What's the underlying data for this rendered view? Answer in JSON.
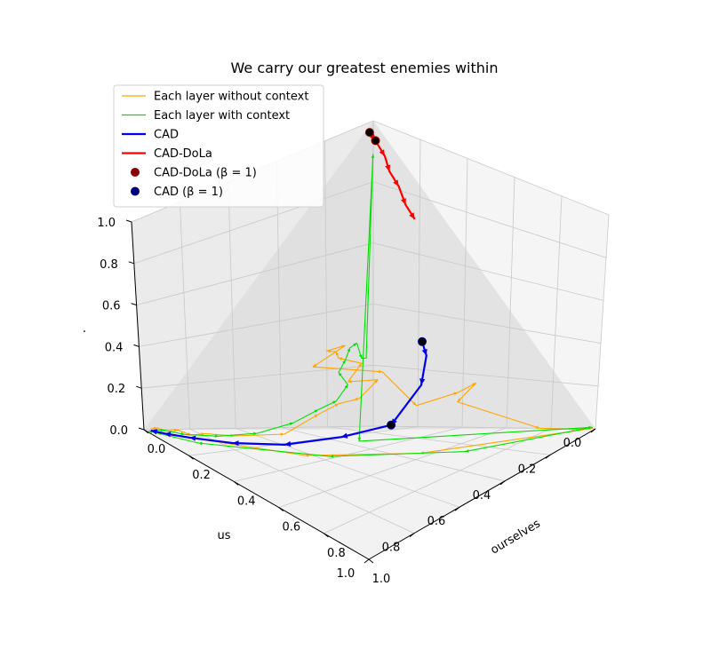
{
  "chart_data": {
    "type": "line",
    "title": "We carry our greatest enemies within",
    "axes": {
      "x": {
        "label": "ourselves",
        "ticks": [
          "0.0",
          "0.2",
          "0.4",
          "0.6",
          "0.8",
          "1.0"
        ],
        "lim": [
          0,
          1
        ]
      },
      "y": {
        "label": "us",
        "ticks": [
          "0.0",
          "0.2",
          "0.4",
          "0.6",
          "0.8",
          "1.0"
        ],
        "lim": [
          0,
          1
        ]
      },
      "z": {
        "label": ".",
        "ticks": [
          "0.0",
          "0.2",
          "0.4",
          "0.6",
          "0.8",
          "1.0"
        ],
        "lim": [
          0,
          1
        ]
      }
    },
    "legend": {
      "placement": "upper-left",
      "entries": [
        {
          "label": "Each layer without context",
          "color": "#ffa500",
          "style": "thin-line"
        },
        {
          "label": "Each layer with context",
          "color": "#00e000",
          "style": "thin-line"
        },
        {
          "label": "CAD",
          "color": "#0000ee",
          "style": "thick-line"
        },
        {
          "label": "CAD-DoLa",
          "color": "#ff0000",
          "style": "thick-line"
        },
        {
          "label": "CAD-DoLa (β = 1)",
          "color": "#8b0000",
          "style": "marker"
        },
        {
          "label": "CAD (β = 1)",
          "color": "#000080",
          "style": "marker"
        }
      ]
    },
    "series": [
      {
        "name": "Each layer without context",
        "color": "#ffa500",
        "points": [
          [
            0.01,
            0.98,
            0.01
          ],
          [
            0.02,
            0.96,
            0.02
          ],
          [
            0.03,
            0.94,
            0.01
          ],
          [
            0.06,
            0.91,
            0.03
          ],
          [
            0.09,
            0.88,
            0.02
          ],
          [
            0.12,
            0.85,
            0.04
          ],
          [
            0.18,
            0.78,
            0.05
          ],
          [
            0.28,
            0.66,
            0.08
          ],
          [
            0.33,
            0.56,
            0.16
          ],
          [
            0.36,
            0.5,
            0.2
          ],
          [
            0.4,
            0.45,
            0.22
          ],
          [
            0.41,
            0.38,
            0.28
          ],
          [
            0.36,
            0.46,
            0.28
          ],
          [
            0.38,
            0.42,
            0.35
          ],
          [
            0.36,
            0.5,
            0.39
          ],
          [
            0.36,
            0.51,
            0.42
          ],
          [
            0.38,
            0.57,
            0.45
          ],
          [
            0.4,
            0.51,
            0.46
          ],
          [
            0.35,
            0.6,
            0.38
          ],
          [
            0.45,
            0.4,
            0.33
          ],
          [
            0.55,
            0.35,
            0.2
          ],
          [
            0.62,
            0.24,
            0.23
          ],
          [
            0.64,
            0.18,
            0.25
          ],
          [
            0.6,
            0.22,
            0.18
          ],
          [
            0.85,
            0.1,
            0.05
          ],
          [
            0.95,
            0.04,
            0.02
          ],
          [
            0.99,
            0.005,
            0.005
          ],
          [
            0.6,
            0.38,
            0.02
          ],
          [
            0.35,
            0.64,
            0.01
          ],
          [
            0.17,
            0.82,
            0.02
          ],
          [
            0.09,
            0.9,
            0.01
          ],
          [
            0.03,
            0.97,
            0.0
          ]
        ]
      },
      {
        "name": "Each layer with context",
        "color": "#00e000",
        "points": [
          [
            0.02,
            0.97,
            0.01
          ],
          [
            0.04,
            0.95,
            0.02
          ],
          [
            0.08,
            0.9,
            0.02
          ],
          [
            0.15,
            0.82,
            0.04
          ],
          [
            0.22,
            0.72,
            0.07
          ],
          [
            0.28,
            0.62,
            0.12
          ],
          [
            0.33,
            0.56,
            0.18
          ],
          [
            0.37,
            0.52,
            0.22
          ],
          [
            0.38,
            0.48,
            0.28
          ],
          [
            0.36,
            0.5,
            0.33
          ],
          [
            0.37,
            0.48,
            0.38
          ],
          [
            0.38,
            0.47,
            0.43
          ],
          [
            0.41,
            0.5,
            0.45
          ],
          [
            0.41,
            0.47,
            0.46
          ],
          [
            0.41,
            0.45,
            0.39
          ],
          [
            0.42,
            0.44,
            0.39
          ],
          [
            0.05,
            0.05,
            0.92
          ],
          [
            0.45,
            0.5,
            0.07
          ],
          [
            0.99,
            0.005,
            0.01
          ],
          [
            0.7,
            0.28,
            0.01
          ],
          [
            0.4,
            0.58,
            0.01
          ],
          [
            0.12,
            0.88,
            0.0
          ],
          [
            0.01,
            0.99,
            0.0
          ]
        ]
      },
      {
        "name": "CAD",
        "color": "#0000ee",
        "points": [
          [
            0.42,
            0.2,
            0.38
          ],
          [
            0.46,
            0.22,
            0.34
          ],
          [
            0.5,
            0.28,
            0.25
          ],
          [
            0.49,
            0.4,
            0.12
          ],
          [
            0.4,
            0.53,
            0.08
          ],
          [
            0.29,
            0.67,
            0.04
          ],
          [
            0.18,
            0.79,
            0.02
          ],
          [
            0.09,
            0.89,
            0.01
          ],
          [
            0.04,
            0.95,
            0.005
          ],
          [
            0.01,
            0.98,
            0.002
          ]
        ],
        "arrows": true
      },
      {
        "name": "CAD-DoLa",
        "color": "#ff0000",
        "points": [
          [
            0.005,
            0.02,
            0.97
          ],
          [
            0.03,
            0.02,
            0.95
          ],
          [
            0.07,
            0.02,
            0.91
          ],
          [
            0.1,
            0.03,
            0.87
          ],
          [
            0.14,
            0.03,
            0.83
          ],
          [
            0.18,
            0.04,
            0.78
          ],
          [
            0.22,
            0.04,
            0.74
          ]
        ],
        "arrows": true
      },
      {
        "name": "CAD-DoLa (β = 1)",
        "color": "#8b0000",
        "markers": [
          [
            0.005,
            0.02,
            0.97
          ],
          [
            0.03,
            0.02,
            0.95
          ]
        ]
      },
      {
        "name": "CAD (β = 1)",
        "color": "#000080",
        "markers": [
          [
            0.42,
            0.2,
            0.38
          ],
          [
            0.49,
            0.4,
            0.12
          ]
        ]
      }
    ]
  }
}
